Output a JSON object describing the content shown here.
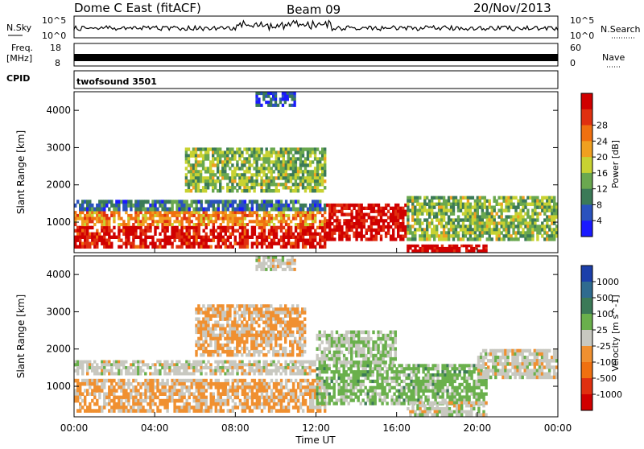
{
  "header": {
    "station": "Dome C East (fitACF)",
    "beam": "Beam 09",
    "date": "20/Nov/2013"
  },
  "top_panels": {
    "nsky_label": "N.Sky",
    "nsky_tick_top": "10^5",
    "nsky_tick_bottom": "10^0",
    "nsearch_label": "N.Search",
    "freq_label_line1": "Freq.",
    "freq_label_line2": "[MHz]",
    "freq_tick_top": "18",
    "freq_tick_bottom": "8",
    "nave_label": "Nave",
    "nave_tick_top": "60",
    "nave_tick_bottom": "0",
    "cpid_label": "CPID",
    "cpid_value": "twofsound 3501"
  },
  "x_axis": {
    "label": "Time UT",
    "ticks": [
      "00:00",
      "04:00",
      "08:00",
      "12:00",
      "16:00",
      "20:00",
      "00:00"
    ]
  },
  "y_axis": {
    "label": "Slant Range [km]",
    "ticks": [
      "1000",
      "2000",
      "3000",
      "4000"
    ]
  },
  "power_colorbar": {
    "label": "Power [dB]",
    "ticks": [
      "4",
      "8",
      "12",
      "16",
      "20",
      "24",
      "28"
    ],
    "colors": [
      "#1a1aff",
      "#2a52be",
      "#3b7a57",
      "#6aa84f",
      "#c8d232",
      "#f0a020",
      "#f07010",
      "#e03010",
      "#d00000"
    ]
  },
  "velocity_colorbar": {
    "label": "Velocity [m s^-1]",
    "ticks": [
      "1000",
      "500",
      "100",
      "25",
      "-25",
      "-100",
      "-500",
      "-1000"
    ],
    "colors": [
      "#1c3faa",
      "#2f6b8f",
      "#3b7a57",
      "#6ab04c",
      "#c8c8c0",
      "#f09030",
      "#f07010",
      "#e03010",
      "#d00000"
    ]
  },
  "chart_data": [
    {
      "type": "heatmap",
      "name": "power",
      "x_range_hours": [
        0,
        24
      ],
      "y_range_km": [
        180,
        4500
      ],
      "value_units": "dB",
      "color_scale": [
        4,
        28
      ],
      "regions": [
        {
          "t0": 0.0,
          "t1": 12.5,
          "r0": 300,
          "r1": 900,
          "value": 26
        },
        {
          "t0": 0.0,
          "t1": 12.5,
          "r0": 900,
          "r1": 1300,
          "value": 20
        },
        {
          "t0": 0.0,
          "t1": 12.5,
          "r0": 1300,
          "r1": 1600,
          "value": 10
        },
        {
          "t0": 12.5,
          "t1": 16.5,
          "r0": 500,
          "r1": 1500,
          "value": 27
        },
        {
          "t0": 16.5,
          "t1": 20.5,
          "r0": 200,
          "r1": 400,
          "value": 28
        },
        {
          "t0": 16.5,
          "t1": 24.0,
          "r0": 500,
          "r1": 1700,
          "value": 14
        },
        {
          "t0": 5.5,
          "t1": 12.5,
          "r0": 1800,
          "r1": 3000,
          "value": 14
        },
        {
          "t0": 9.0,
          "t1": 11.0,
          "r0": 4100,
          "r1": 4500,
          "value": 8
        }
      ]
    },
    {
      "type": "heatmap",
      "name": "velocity",
      "x_range_hours": [
        0,
        24
      ],
      "y_range_km": [
        180,
        4500
      ],
      "value_units": "m s^-1",
      "color_scale": [
        -1000,
        1000
      ],
      "regions": [
        {
          "t0": 0.0,
          "t1": 12.5,
          "r0": 300,
          "r1": 1200,
          "value": -150
        },
        {
          "t0": 0.0,
          "t1": 12.0,
          "r0": 1300,
          "r1": 1700,
          "value": 0
        },
        {
          "t0": 6.0,
          "t1": 11.5,
          "r0": 1800,
          "r1": 3200,
          "value": -150
        },
        {
          "t0": 12.0,
          "t1": 20.5,
          "r0": 500,
          "r1": 1600,
          "value": 200
        },
        {
          "t0": 12.0,
          "t1": 16.0,
          "r0": 1600,
          "r1": 2500,
          "value": 100
        },
        {
          "t0": 20.0,
          "t1": 24.0,
          "r0": 1200,
          "r1": 2000,
          "value": 0
        },
        {
          "t0": 16.5,
          "t1": 20.5,
          "r0": 200,
          "r1": 600,
          "value": 0
        },
        {
          "t0": 9.0,
          "t1": 11.0,
          "r0": 4100,
          "r1": 4500,
          "value": 0
        }
      ]
    }
  ]
}
